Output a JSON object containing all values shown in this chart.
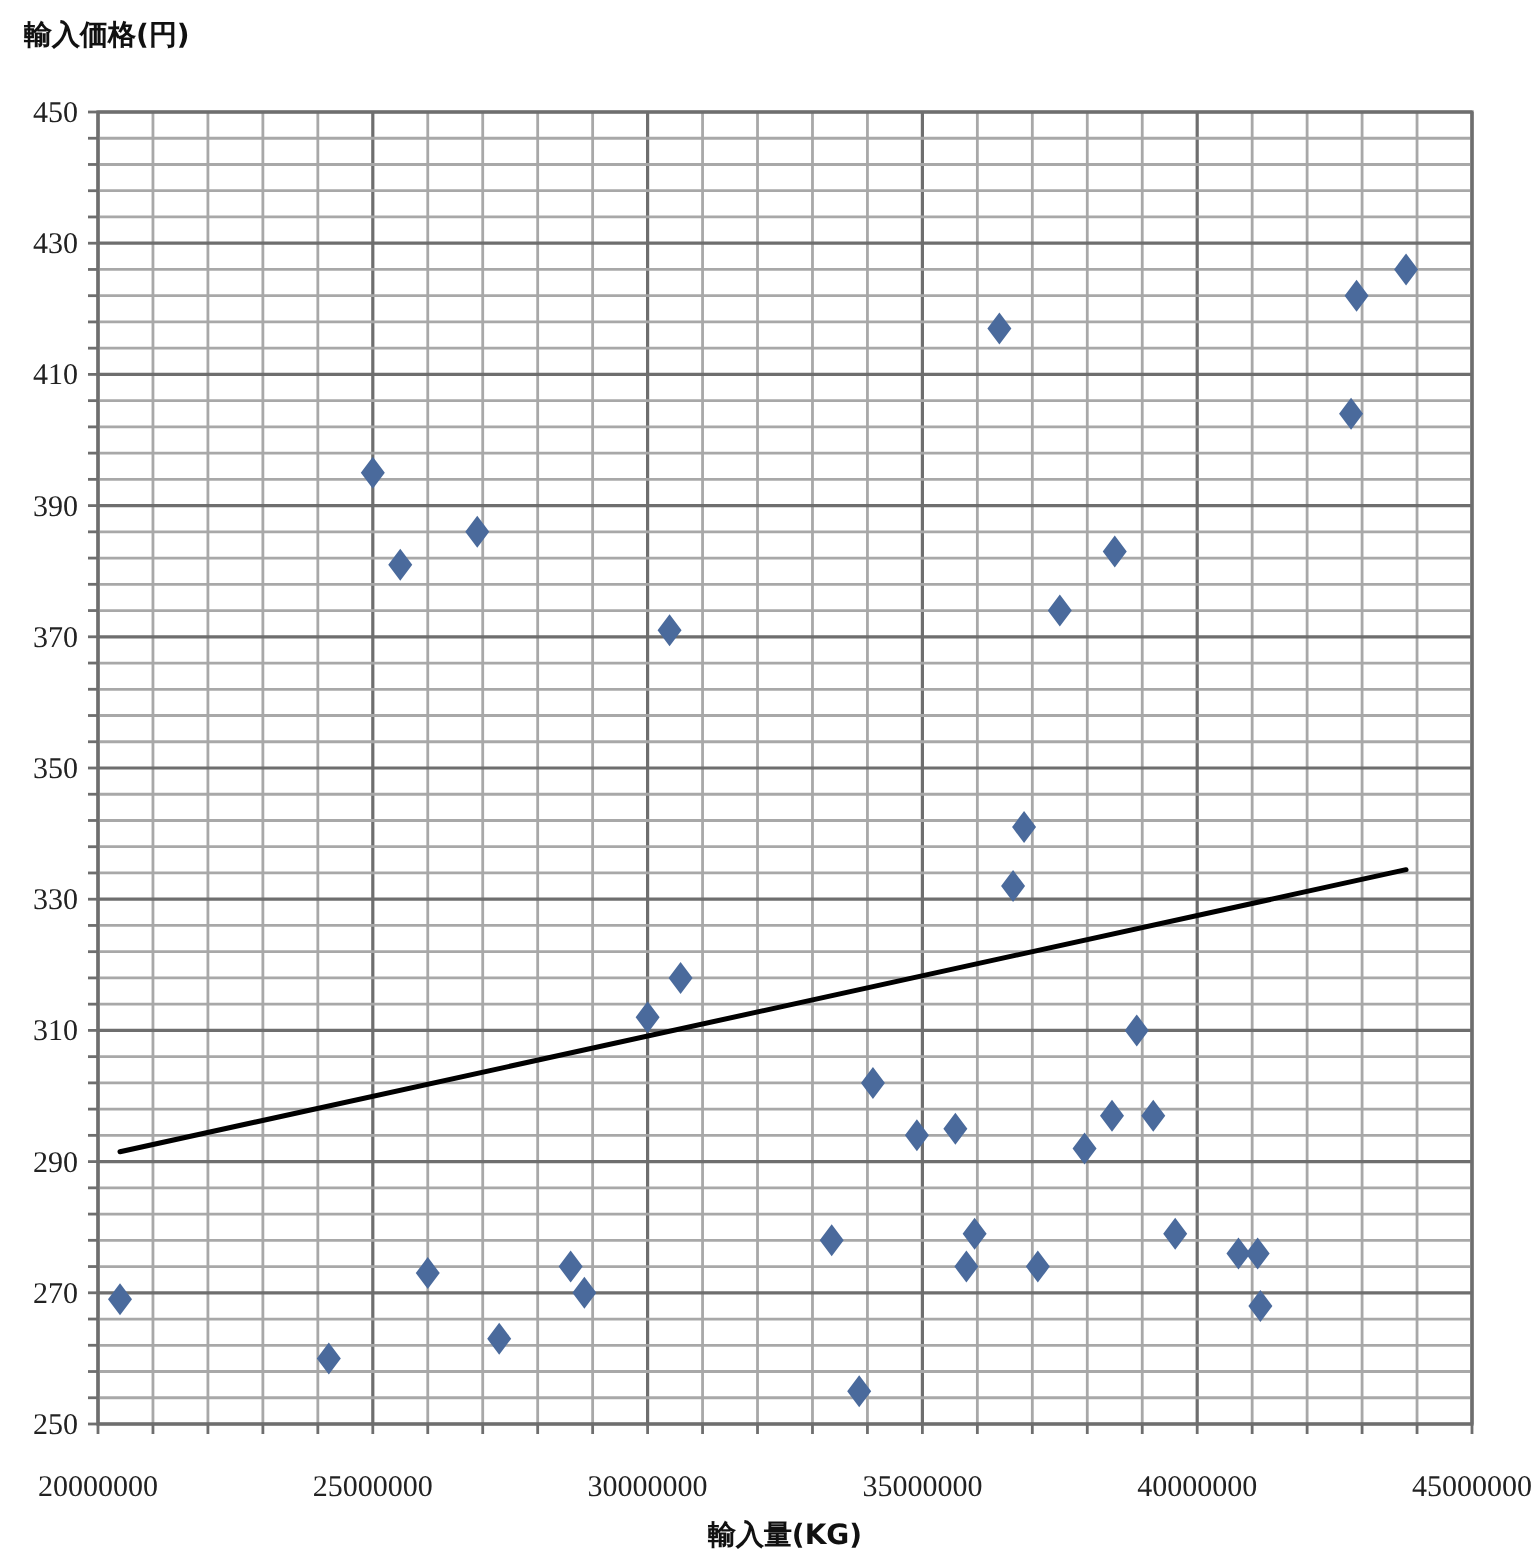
{
  "chart_data": {
    "type": "scatter",
    "ylabel": "輸入価格(円)",
    "xlabel": "輸入量(KG)",
    "xlim": [
      20000000,
      45000000
    ],
    "ylim": [
      250,
      450
    ],
    "xticks": [
      20000000,
      {
        "value": 21000000,
        "label": null
      },
      {
        "value": 22000000,
        "label": null
      },
      {
        "value": 23000000,
        "label": null
      },
      {
        "value": 24000000,
        "label": null
      },
      25000000,
      {
        "value": 26000000,
        "label": null
      },
      {
        "value": 27000000,
        "label": null
      },
      {
        "value": 28000000,
        "label": null
      },
      {
        "value": 29000000,
        "label": null
      },
      30000000,
      {
        "value": 31000000,
        "label": null
      },
      {
        "value": 32000000,
        "label": null
      },
      {
        "value": 33000000,
        "label": null
      },
      {
        "value": 34000000,
        "label": null
      },
      35000000,
      {
        "value": 36000000,
        "label": null
      },
      {
        "value": 37000000,
        "label": null
      },
      {
        "value": 38000000,
        "label": null
      },
      {
        "value": 39000000,
        "label": null
      },
      40000000,
      {
        "value": 41000000,
        "label": null
      },
      {
        "value": 42000000,
        "label": null
      },
      {
        "value": 43000000,
        "label": null
      },
      {
        "value": 44000000,
        "label": null
      },
      45000000
    ],
    "yticks": [
      250,
      {
        "value": 254,
        "label": null
      },
      {
        "value": 258,
        "label": null
      },
      {
        "value": 262,
        "label": null
      },
      {
        "value": 266,
        "label": null
      },
      270,
      {
        "value": 274,
        "label": null
      },
      {
        "value": 278,
        "label": null
      },
      {
        "value": 282,
        "label": null
      },
      {
        "value": 286,
        "label": null
      },
      290,
      {
        "value": 294,
        "label": null
      },
      {
        "value": 298,
        "label": null
      },
      {
        "value": 302,
        "label": null
      },
      {
        "value": 306,
        "label": null
      },
      310,
      {
        "value": 314,
        "label": null
      },
      {
        "value": 318,
        "label": null
      },
      {
        "value": 322,
        "label": null
      },
      {
        "value": 326,
        "label": null
      },
      330,
      {
        "value": 334,
        "label": null
      },
      {
        "value": 338,
        "label": null
      },
      {
        "value": 342,
        "label": null
      },
      {
        "value": 346,
        "label": null
      },
      350,
      {
        "value": 354,
        "label": null
      },
      {
        "value": 358,
        "label": null
      },
      {
        "value": 362,
        "label": null
      },
      {
        "value": 366,
        "label": null
      },
      370,
      {
        "value": 374,
        "label": null
      },
      {
        "value": 378,
        "label": null
      },
      {
        "value": 382,
        "label": null
      },
      {
        "value": 386,
        "label": null
      },
      390,
      {
        "value": 394,
        "label": null
      },
      {
        "value": 398,
        "label": null
      },
      {
        "value": 402,
        "label": null
      },
      {
        "value": 406,
        "label": null
      },
      410,
      {
        "value": 414,
        "label": null
      },
      {
        "value": 418,
        "label": null
      },
      {
        "value": 422,
        "label": null
      },
      {
        "value": 426,
        "label": null
      },
      430,
      {
        "value": 434,
        "label": null
      },
      {
        "value": 438,
        "label": null
      },
      {
        "value": 442,
        "label": null
      },
      {
        "value": 446,
        "label": null
      },
      450
    ],
    "grid": true,
    "series": [
      {
        "type": "scatter",
        "marker": "diamond",
        "color": "#4a6a9c",
        "x": [
          20400000,
          24200000,
          25000000,
          25500000,
          26000000,
          26900000,
          27300000,
          28600000,
          28850000,
          30000000,
          30400000,
          30600000,
          33350000,
          33850000,
          34100000,
          34900000,
          35600000,
          35800000,
          35950000,
          36400000,
          36650000,
          36850000,
          37100000,
          37500000,
          37950000,
          38450000,
          38500000,
          38900000,
          39200000,
          39600000,
          40750000,
          41100000,
          41150000,
          42800000,
          42900000,
          43800000
        ],
        "values": [
          269,
          260,
          395,
          381,
          273,
          386,
          263,
          274,
          270,
          312,
          371,
          318,
          278,
          255,
          302,
          294,
          295,
          274,
          279,
          417,
          332,
          341,
          274,
          374,
          292,
          297,
          383,
          310,
          297,
          279,
          276,
          276,
          268,
          404,
          422,
          426
        ]
      },
      {
        "type": "line",
        "marker": "none",
        "color": "#000000",
        "x": [
          20400000,
          43800000
        ],
        "values": [
          291.5,
          334.5
        ]
      }
    ]
  }
}
